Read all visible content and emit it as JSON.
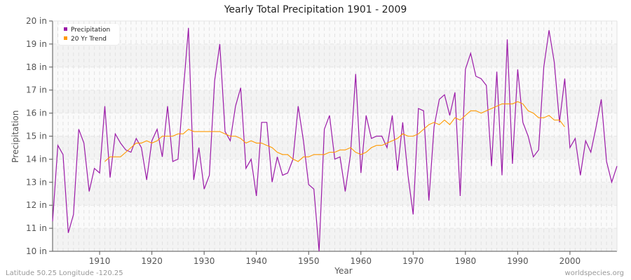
{
  "title": "Yearly Total Precipitation 1901 - 2009",
  "footer": {
    "left": "Latitude 50.25 Longitude -120.25",
    "right": "worldspecies.org"
  },
  "legend": [
    {
      "label": "Precipitation",
      "color": "#9b1aa8"
    },
    {
      "label": "20 Yr Trend",
      "color": "#ff9900"
    }
  ],
  "chart_data": {
    "type": "line",
    "title": "Yearly Total Precipitation 1901 - 2009",
    "xlabel": "Year",
    "ylabel": "Precipitation",
    "ylim": [
      10,
      20
    ],
    "xlim": [
      1901,
      2009
    ],
    "y_ticks": [
      "10 in",
      "11 in",
      "12 in",
      "13 in",
      "14 in",
      "15 in",
      "16 in",
      "17 in",
      "18 in",
      "19 in",
      "20 in"
    ],
    "x_ticks": [
      1910,
      1920,
      1930,
      1940,
      1950,
      1960,
      1970,
      1980,
      1990,
      2000
    ],
    "grid": true,
    "legend_position": "top-left",
    "series": [
      {
        "name": "Precipitation",
        "color": "#9b1aa8",
        "start_year": 1901,
        "values": [
          11.3,
          14.6,
          14.2,
          10.8,
          11.6,
          15.3,
          14.7,
          12.6,
          13.6,
          13.4,
          16.3,
          13.2,
          15.1,
          14.7,
          14.4,
          14.3,
          14.9,
          14.5,
          13.1,
          14.8,
          15.3,
          14.1,
          16.3,
          13.9,
          14.0,
          16.9,
          19.7,
          13.1,
          14.5,
          12.7,
          13.3,
          17.4,
          19.0,
          15.2,
          14.8,
          16.3,
          17.1,
          13.6,
          14.0,
          12.4,
          15.6,
          15.6,
          13.0,
          14.1,
          13.3,
          13.4,
          14.0,
          16.3,
          14.8,
          12.9,
          12.7,
          10.0,
          15.3,
          15.9,
          14.0,
          14.1,
          12.6,
          14.2,
          17.7,
          13.4,
          15.9,
          14.9,
          15.0,
          15.0,
          14.5,
          15.9,
          13.5,
          15.6,
          13.3,
          11.6,
          16.2,
          16.1,
          12.2,
          15.4,
          16.6,
          16.8,
          15.9,
          16.9,
          12.4,
          17.9,
          18.6,
          17.6,
          17.5,
          17.2,
          13.7,
          17.8,
          13.3,
          19.2,
          13.8,
          17.9,
          15.6,
          15.0,
          14.1,
          14.4,
          18.0,
          19.6,
          18.2,
          15.6,
          17.5,
          14.5,
          14.9,
          13.3,
          14.8,
          14.3,
          15.4,
          16.6,
          13.9,
          13.0,
          13.7
        ]
      },
      {
        "name": "20 Yr Trend",
        "color": "#ff9900",
        "start_year": 1911,
        "values": [
          13.9,
          14.1,
          14.1,
          14.1,
          14.3,
          14.5,
          14.7,
          14.7,
          14.8,
          14.7,
          14.8,
          15.0,
          15.0,
          15.0,
          15.1,
          15.1,
          15.3,
          15.2,
          15.2,
          15.2,
          15.2,
          15.2,
          15.2,
          15.1,
          15.0,
          15.0,
          14.9,
          14.7,
          14.8,
          14.7,
          14.7,
          14.6,
          14.5,
          14.3,
          14.2,
          14.2,
          14.0,
          13.9,
          14.1,
          14.1,
          14.2,
          14.2,
          14.2,
          14.3,
          14.3,
          14.4,
          14.4,
          14.5,
          14.3,
          14.2,
          14.3,
          14.5,
          14.6,
          14.6,
          14.7,
          14.8,
          14.9,
          15.1,
          15.0,
          15.0,
          15.1,
          15.3,
          15.5,
          15.6,
          15.5,
          15.7,
          15.5,
          15.8,
          15.7,
          15.9,
          16.1,
          16.1,
          16.0,
          16.1,
          16.2,
          16.3,
          16.4,
          16.4,
          16.4,
          16.5,
          16.4,
          16.1,
          16.0,
          15.8,
          15.8,
          15.9,
          15.7,
          15.7,
          15.4
        ]
      }
    ]
  }
}
